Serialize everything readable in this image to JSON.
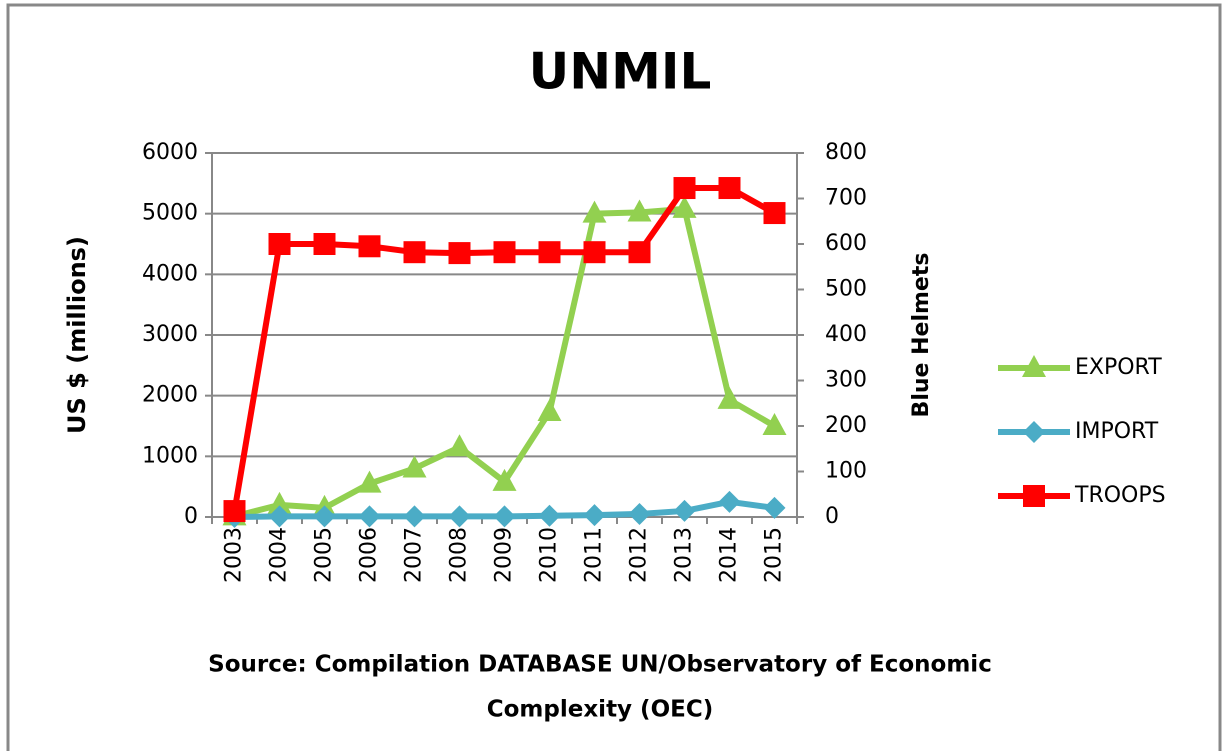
{
  "chart_data": {
    "type": "line",
    "title": "UNMIL",
    "categories": [
      "2003",
      "2004",
      "2005",
      "2006",
      "2007",
      "2008",
      "2009",
      "2010",
      "2011",
      "2012",
      "2013",
      "2014",
      "2015"
    ],
    "ylabel": "US $ (millions)",
    "y2label": "Blue Helmets",
    "ylim": [
      0,
      6000
    ],
    "yticks": [
      0,
      1000,
      2000,
      3000,
      4000,
      5000,
      6000
    ],
    "y2lim": [
      0,
      800
    ],
    "y2ticks": [
      0,
      100,
      200,
      300,
      400,
      500,
      600,
      700,
      800
    ],
    "grid": true,
    "legend": "right",
    "series": [
      {
        "name": "EXPORT",
        "color": "#92d050",
        "marker": "triangle",
        "values": [
          10,
          200,
          150,
          550,
          800,
          1150,
          580,
          1730,
          5000,
          5020,
          5080,
          1930,
          1500
        ]
      },
      {
        "name": "IMPORT",
        "color": "#4bacc6",
        "marker": "diamond",
        "values": [
          0,
          10,
          10,
          10,
          10,
          10,
          10,
          20,
          30,
          50,
          100,
          250,
          150
        ]
      },
      {
        "name": "TROOPS",
        "color": "#ff0000",
        "marker": "square",
        "axis": "y2",
        "values": [
          13,
          600,
          600,
          595,
          582,
          580,
          582,
          582,
          582,
          582,
          723,
          723,
          668
        ]
      }
    ],
    "source": [
      "Source: Compilation DATABASE UN/Observatory of Economic",
      "Complexity (OEC)"
    ]
  }
}
